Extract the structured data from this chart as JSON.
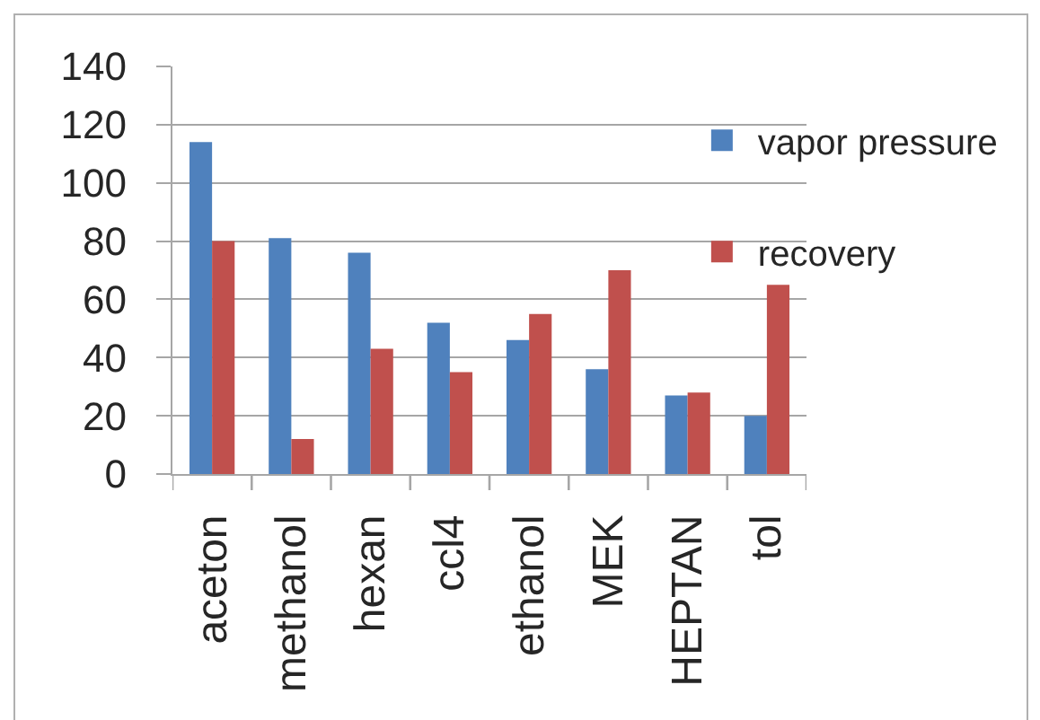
{
  "chart_data": {
    "type": "bar",
    "categories": [
      "aceton",
      "methanol",
      "hexan",
      "ccl4",
      "ethanol",
      "MEK",
      "HEPTAN",
      "tol"
    ],
    "series": [
      {
        "name": "vapor pressure",
        "color": "#4f81bd",
        "values": [
          114,
          81,
          76,
          52,
          46,
          36,
          27,
          20
        ]
      },
      {
        "name": "recovery",
        "color": "#c0504d",
        "values": [
          80,
          12,
          43,
          35,
          55,
          70,
          28,
          65
        ]
      }
    ],
    "ylim": [
      0,
      140
    ],
    "yticks": [
      0,
      20,
      40,
      60,
      80,
      100,
      120,
      140
    ],
    "grid": "y",
    "legend": "right"
  }
}
